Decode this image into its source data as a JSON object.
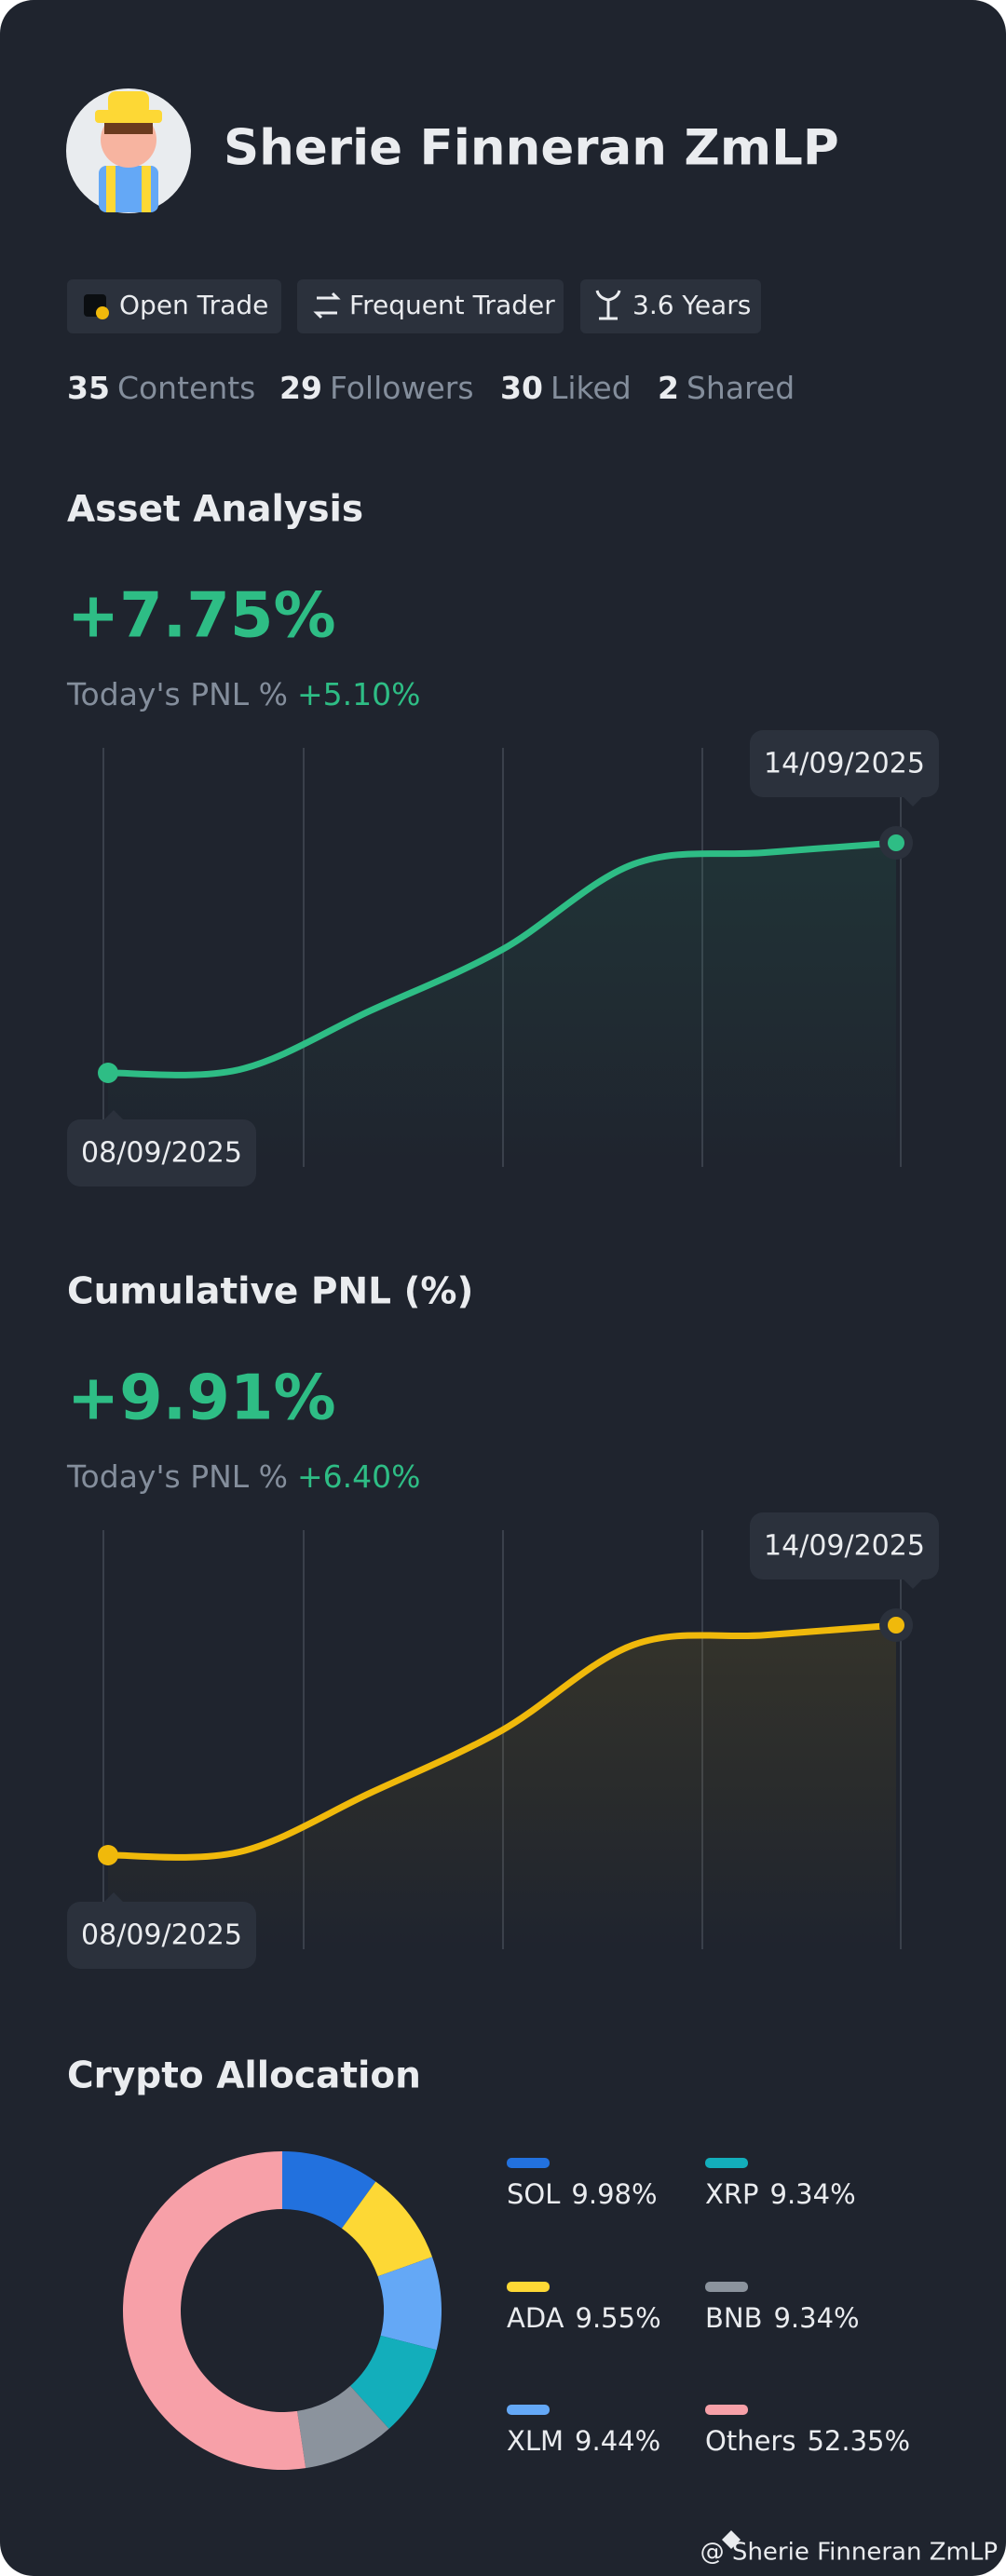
{
  "profile": {
    "name": "Sherie Finneran ZmLP",
    "badges": [
      "Open Trade",
      "Frequent Trader",
      "3.6 Years"
    ],
    "stats": [
      {
        "value": 35,
        "label": "Contents"
      },
      {
        "value": 29,
        "label": "Followers"
      },
      {
        "value": 30,
        "label": "Liked"
      },
      {
        "value": 2,
        "label": "Shared"
      }
    ]
  },
  "chart_data": [
    {
      "type": "line",
      "title": "Asset Analysis",
      "headline": "+7.75%",
      "subtitle": "Today's PNL %",
      "today": "+5.10%",
      "categories": [
        "08/09/2025",
        null,
        null,
        null,
        null,
        null,
        "14/09/2025"
      ],
      "series": [
        {
          "color": "#2ebd85",
          "values": [
            0,
            0.11,
            2.1,
            4.15,
            7.03,
            7.42,
            7.75
          ]
        }
      ]
    },
    {
      "type": "line",
      "title": "Cumulative PNL (%)",
      "headline": "+9.91%",
      "subtitle": "Today's PNL %",
      "today": "+6.40%",
      "categories": [
        "08/09/2025",
        null,
        null,
        null,
        null,
        null,
        "14/09/2025"
      ],
      "series": [
        {
          "color": "#f0b90b",
          "values": [
            0,
            0.14,
            2.69,
            5.38,
            9.06,
            9.48,
            9.91
          ]
        }
      ]
    },
    {
      "type": "pie",
      "title": "Crypto Allocation",
      "categories": [
        "SOL",
        "ADA",
        "XLM",
        "XRP",
        "BNB",
        "Others"
      ],
      "values": [
        9.98,
        9.55,
        9.44,
        9.34,
        9.34,
        52.35
      ],
      "value_labels": [
        "9.98%",
        "9.55%",
        "9.44%",
        "9.34%",
        "9.34%",
        "52.35%"
      ],
      "colors": [
        "#2271de",
        "#fdd835",
        "#64a8f6",
        "#13aebb",
        "#8b939d",
        "#f7a0a8"
      ]
    }
  ],
  "footer": "@ Sherie Finneran ZmLP"
}
